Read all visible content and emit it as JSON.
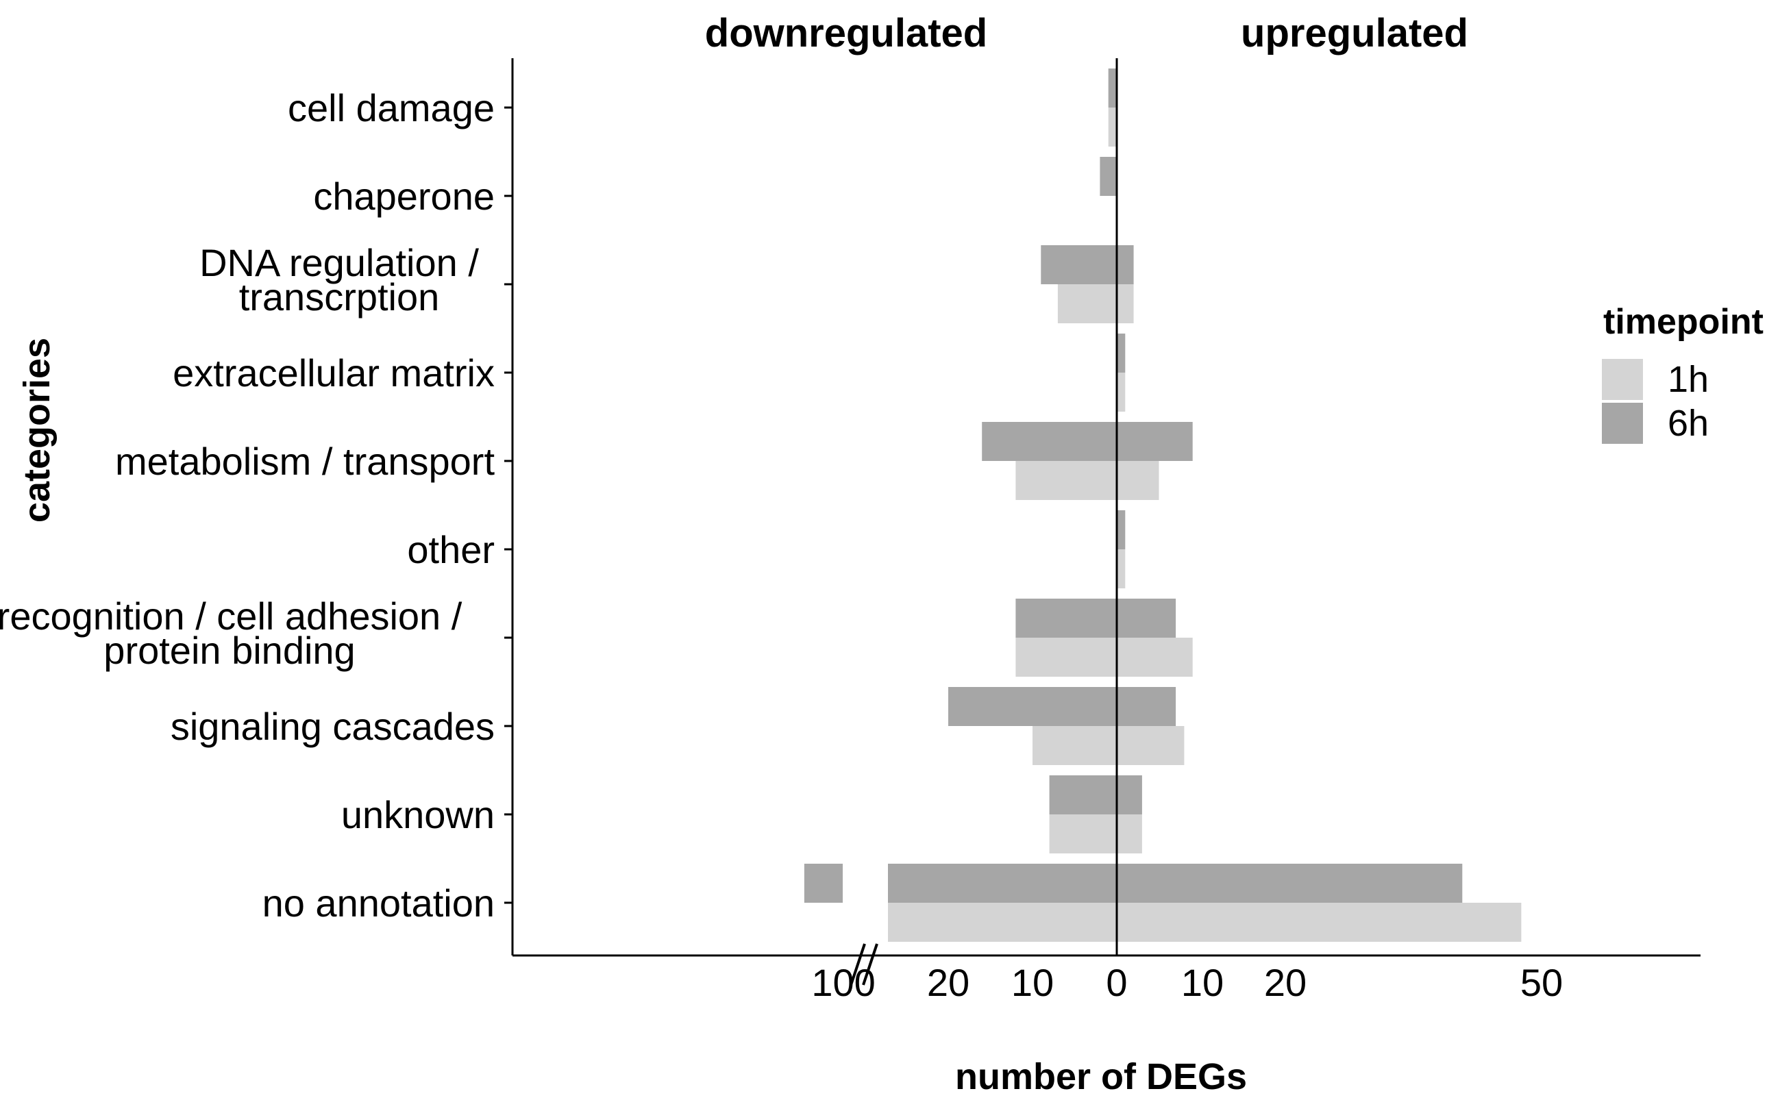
{
  "chart_data": {
    "type": "bar",
    "orientation": "horizontal",
    "layout": "diverging",
    "side_labels": {
      "left": "downregulated",
      "right": "upregulated"
    },
    "xlabel": "number of DEGs",
    "ylabel": "categories",
    "axis_break": true,
    "x_tick_labels": {
      "left": [
        "100",
        "20",
        "10",
        "0"
      ],
      "right": [
        "10",
        "20",
        "50"
      ]
    },
    "grid": false,
    "legend": {
      "title": "timepoint",
      "position": "right",
      "entries": [
        {
          "label": "1h",
          "color": "#d4d4d4"
        },
        {
          "label": "6h",
          "color": "#a6a6a6"
        }
      ]
    },
    "categories": [
      "cell  damage",
      "chaperone",
      "DNA regulation /\ntranscrption",
      "extracellular  matrix",
      "metabolism / transport",
      "other",
      "recognition / cell adhesion /\nprotein binding",
      "signaling cascades",
      "unknown",
      "no annotation"
    ],
    "series": [
      {
        "name": "1h",
        "color": "#d4d4d4",
        "downregulated": [
          1,
          0,
          7,
          0,
          12,
          0,
          12,
          10,
          8,
          90
        ],
        "upregulated": [
          0,
          0,
          2,
          1,
          5,
          1,
          9,
          8,
          3,
          48
        ]
      },
      {
        "name": "6h",
        "color": "#a6a6a6",
        "downregulated": [
          1,
          2,
          9,
          0,
          16,
          0,
          12,
          20,
          8,
          120
        ],
        "upregulated": [
          0,
          0,
          2,
          1,
          9,
          1,
          7,
          7,
          3,
          41
        ]
      }
    ]
  }
}
